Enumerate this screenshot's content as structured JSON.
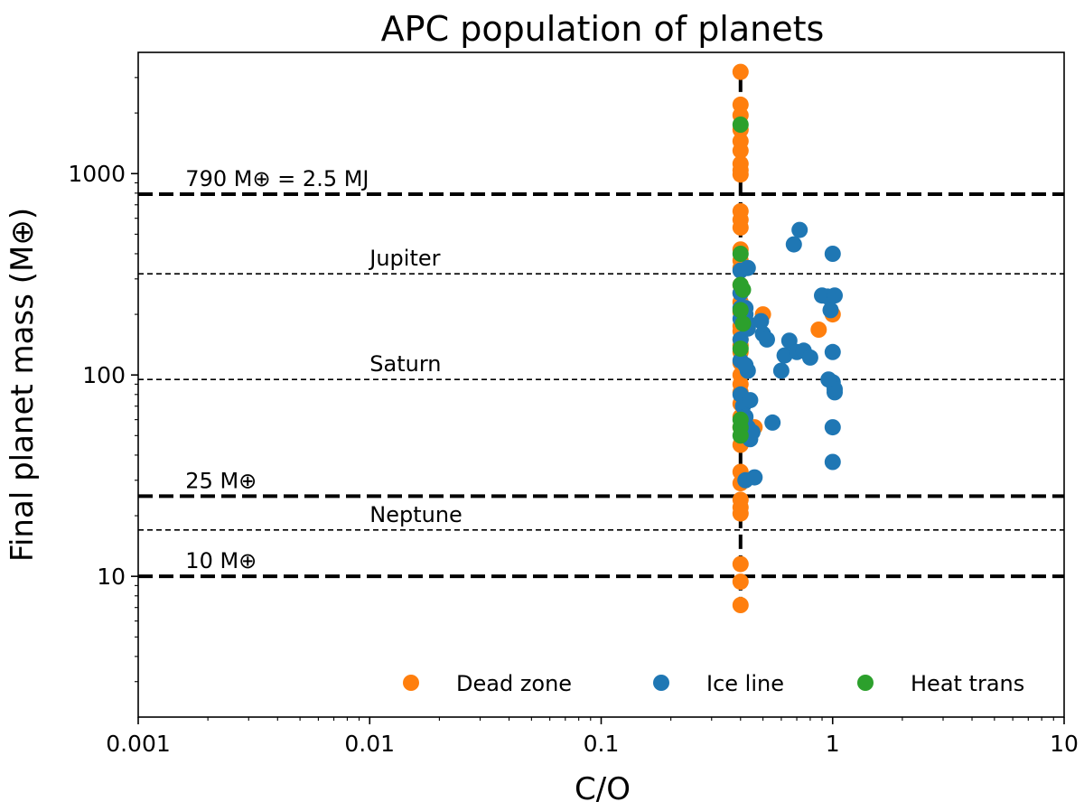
{
  "chart_data": {
    "type": "scatter",
    "title": "APC population of planets",
    "xlabel": "C/O",
    "ylabel": "Final planet mass (M⊕)",
    "xscale": "log",
    "yscale": "log",
    "xlim": [
      0.001,
      10
    ],
    "ylim": [
      2,
      4000
    ],
    "x_ticks": [
      {
        "value": 0.001,
        "label": "0.001"
      },
      {
        "value": 0.01,
        "label": "0.01"
      },
      {
        "value": 0.1,
        "label": "0.1"
      },
      {
        "value": 1,
        "label": "1"
      },
      {
        "value": 10,
        "label": "10"
      }
    ],
    "y_ticks": [
      {
        "value": 10,
        "label": "10"
      },
      {
        "value": 100,
        "label": "100"
      },
      {
        "value": 1000,
        "label": "1000"
      }
    ],
    "legend_position": "bottom",
    "reference_lines": [
      {
        "type": "hline",
        "value": 790,
        "style": "thick-dashed",
        "label": "790 M⊕ = 2.5 MJ"
      },
      {
        "type": "hline",
        "value": 318,
        "style": "thin-dashed",
        "label": "Jupiter"
      },
      {
        "type": "hline",
        "value": 95,
        "style": "thin-dashed",
        "label": "Saturn"
      },
      {
        "type": "hline",
        "value": 25,
        "style": "thick-dashed",
        "label": "25 M⊕"
      },
      {
        "type": "hline",
        "value": 17,
        "style": "thin-dashed",
        "label": "Neptune"
      },
      {
        "type": "hline",
        "value": 10,
        "style": "thick-dashed",
        "label": "10 M⊕"
      },
      {
        "type": "vline",
        "value": 0.4,
        "style": "thick-dashed",
        "ymin": 7,
        "ymax": 3000,
        "label": ""
      }
    ],
    "series": [
      {
        "name": "Dead zone",
        "color": "#ff7f0e",
        "x": [
          0.4,
          0.4,
          0.4,
          0.4,
          0.4,
          0.4,
          0.4,
          0.4,
          0.4,
          0.4,
          0.4,
          0.4,
          0.4,
          0.4,
          0.4,
          0.4,
          0.4,
          0.4,
          0.4,
          0.4,
          0.4,
          0.4,
          0.4,
          0.4,
          0.4,
          0.4,
          0.4,
          0.4,
          0.4,
          0.4,
          0.4,
          0.4,
          0.4,
          0.4,
          0.4,
          0.4,
          0.4,
          0.4,
          0.4,
          0.4,
          0.5,
          0.46,
          0.87,
          1.0
        ],
        "y": [
          3200,
          2200,
          1950,
          1650,
          1450,
          1300,
          1120,
          1040,
          990,
          650,
          590,
          540,
          420,
          370,
          340,
          280,
          255,
          230,
          205,
          175,
          150,
          130,
          115,
          100,
          90,
          82,
          72,
          62,
          55,
          45,
          33,
          29,
          24,
          22,
          20.5,
          11.5,
          9.4,
          7.2,
          165,
          140,
          200,
          55,
          168,
          200
        ]
      },
      {
        "name": "Ice line",
        "color": "#1f77b4",
        "x": [
          0.4,
          0.4,
          0.4,
          0.4,
          0.4,
          0.4,
          0.4,
          0.41,
          0.42,
          0.43,
          0.44,
          0.45,
          0.43,
          0.42,
          0.42,
          0.42,
          0.43,
          0.43,
          0.43,
          0.44,
          0.42,
          0.46,
          0.49,
          0.5,
          0.52,
          0.55,
          0.6,
          0.62,
          0.65,
          0.68,
          0.7,
          0.72,
          0.75,
          0.8,
          0.9,
          0.95,
          0.98,
          1.0,
          1.0,
          1.02,
          1.02,
          1.0,
          1.0,
          1.0,
          1.02,
          0.96
        ],
        "y": [
          330,
          255,
          215,
          190,
          150,
          118,
          80,
          70,
          62,
          55,
          48,
          52,
          105,
          112,
          215,
          200,
          180,
          170,
          340,
          75,
          30,
          31,
          185,
          160,
          150,
          58,
          105,
          125,
          148,
          445,
          130,
          525,
          132,
          122,
          248,
          245,
          210,
          400,
          130,
          82,
          248,
          55,
          37,
          92,
          85,
          95
        ]
      },
      {
        "name": "Heat trans",
        "color": "#2ca02c",
        "x": [
          0.4,
          0.4,
          0.4,
          0.41,
          0.4,
          0.41,
          0.4,
          0.4,
          0.4,
          0.4
        ],
        "y": [
          1750,
          400,
          280,
          265,
          210,
          180,
          135,
          60,
          55,
          50
        ]
      }
    ]
  }
}
